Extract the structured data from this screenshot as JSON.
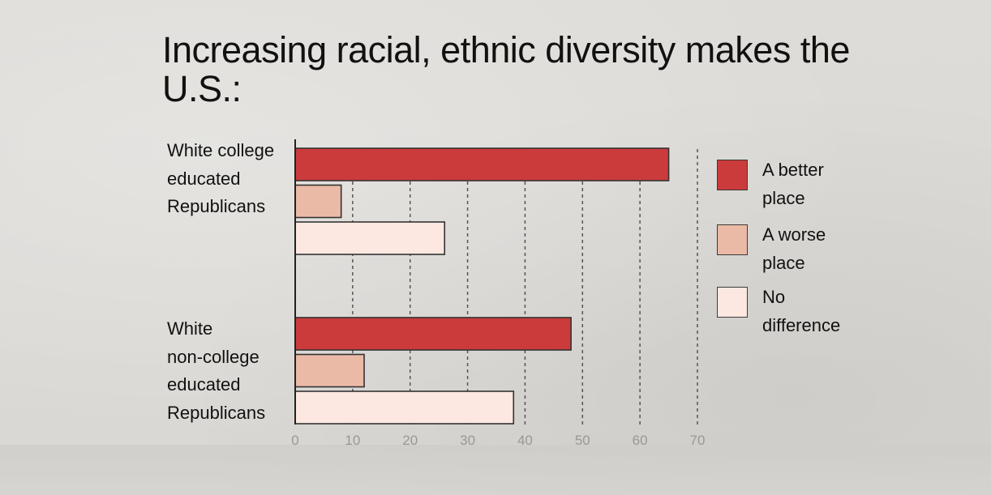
{
  "chart_data": {
    "type": "bar",
    "orientation": "horizontal",
    "title": "Increasing racial, ethnic diversity makes the U.S.:",
    "categories": [
      "White college educated Republicans",
      "White non-college educated Republicans"
    ],
    "series": [
      {
        "name": "A better place",
        "values": [
          65,
          48
        ],
        "color": "#cc3b3b"
      },
      {
        "name": "A worse place",
        "values": [
          8,
          12
        ],
        "color": "#ebbaa6"
      },
      {
        "name": "No difference",
        "values": [
          26,
          38
        ],
        "color": "#fde8e1"
      }
    ],
    "xlim": [
      0,
      70
    ],
    "xticks": [
      "0",
      "10",
      "20",
      "30",
      "40",
      "50",
      "60",
      "70"
    ],
    "grid": "dashed vertical",
    "legend_position": "right"
  },
  "labels": {
    "title": "Increasing racial, ethnic diversity makes the U.S.:",
    "cat0_lines": [
      "White college",
      "educated",
      "Republicans"
    ],
    "cat1_lines": [
      "White",
      "non-college",
      "educated",
      "Republicans"
    ],
    "legend0_lines": [
      "A better",
      "place"
    ],
    "legend1_lines": [
      "A worse",
      "place"
    ],
    "legend2_lines": [
      "No",
      "difference"
    ]
  }
}
